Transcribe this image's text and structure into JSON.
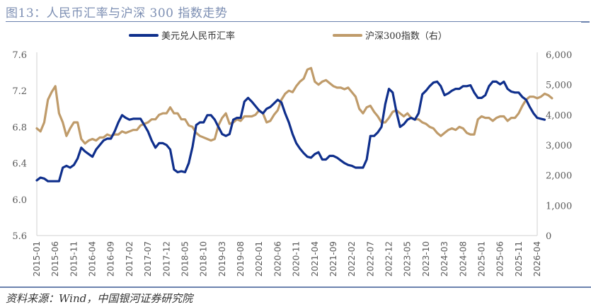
{
  "title": "图13：人民币汇率与沪深 300 指数走势",
  "source": "资料来源：Wind，中国银河证券研究院",
  "chart_data": {
    "type": "line",
    "title": "图13：人民币汇率与沪深 300 指数走势",
    "xlabel": "",
    "ylabel": "",
    "y2label": "",
    "ylim": [
      5.6,
      7.6
    ],
    "y2lim": [
      0,
      6000
    ],
    "yticks": [
      "5.6",
      "6.0",
      "6.4",
      "6.8",
      "7.2",
      "7.6"
    ],
    "y2ticks": [
      "0",
      "1,000",
      "2,000",
      "3,000",
      "4,000",
      "5,000",
      "6,000"
    ],
    "grid": false,
    "legend": "top-center",
    "xticks": [
      "2015-01",
      "2015-06",
      "2015-11",
      "2016-04",
      "2016-09",
      "2017-02",
      "2017-07",
      "2017-12",
      "2018-05",
      "2018-10",
      "2019-03",
      "2019-08",
      "2020-01",
      "2020-06",
      "2020-11",
      "2021-04",
      "2021-09",
      "2022-02",
      "2022-07",
      "2022-12",
      "2023-05",
      "2023-10",
      "2024-03",
      "2024-08",
      "2025-01",
      "2025-06",
      "2025-11",
      "2026-04"
    ],
    "x_start": "2015-01",
    "x_end": "2026-04",
    "series": [
      {
        "name": "美元兑人民币汇率",
        "axis": "left",
        "color": "#0f2f8c",
        "values": [
          6.21,
          6.24,
          6.23,
          6.2,
          6.2,
          6.2,
          6.2,
          6.35,
          6.37,
          6.35,
          6.38,
          6.45,
          6.57,
          6.53,
          6.5,
          6.47,
          6.55,
          6.6,
          6.65,
          6.67,
          6.67,
          6.75,
          6.85,
          6.93,
          6.9,
          6.88,
          6.89,
          6.89,
          6.89,
          6.82,
          6.75,
          6.65,
          6.57,
          6.62,
          6.62,
          6.6,
          6.55,
          6.33,
          6.3,
          6.31,
          6.3,
          6.4,
          6.58,
          6.82,
          6.85,
          6.85,
          6.93,
          6.93,
          6.88,
          6.8,
          6.72,
          6.7,
          6.72,
          6.88,
          6.9,
          6.9,
          7.08,
          7.12,
          7.08,
          7.03,
          6.98,
          6.95,
          7.0,
          7.02,
          7.06,
          7.1,
          7.07,
          6.95,
          6.85,
          6.72,
          6.62,
          6.56,
          6.51,
          6.47,
          6.46,
          6.5,
          6.52,
          6.44,
          6.44,
          6.48,
          6.48,
          6.46,
          6.43,
          6.4,
          6.38,
          6.37,
          6.35,
          6.35,
          6.35,
          6.44,
          6.7,
          6.7,
          6.74,
          6.8,
          7.05,
          7.22,
          7.18,
          6.97,
          6.8,
          6.83,
          6.88,
          6.9,
          6.88,
          6.95,
          7.16,
          7.2,
          7.25,
          7.29,
          7.3,
          7.25,
          7.15,
          7.17,
          7.2,
          7.22,
          7.22,
          7.25,
          7.25,
          7.26,
          7.18,
          7.12,
          7.12,
          7.15,
          7.25,
          7.3,
          7.3,
          7.27,
          7.3,
          7.22,
          7.19,
          7.18,
          7.18,
          7.13,
          7.1,
          7.02,
          6.95,
          6.9,
          6.89,
          6.88
        ]
      },
      {
        "name": "沪深300指数（右）",
        "axis": "right",
        "color": "#bf9b6a",
        "values": [
          3550,
          3450,
          3750,
          4500,
          4750,
          4950,
          4050,
          3750,
          3300,
          3550,
          3750,
          3750,
          3200,
          3050,
          3150,
          3200,
          3150,
          3250,
          3250,
          3350,
          3300,
          3350,
          3350,
          3450,
          3400,
          3450,
          3500,
          3500,
          3650,
          3700,
          3750,
          3850,
          3850,
          4000,
          4050,
          4050,
          4250,
          4050,
          4050,
          3850,
          3850,
          3650,
          3600,
          3400,
          3300,
          3250,
          3200,
          3150,
          3200,
          3650,
          3900,
          4050,
          3700,
          3750,
          3850,
          3800,
          3950,
          3950,
          3950,
          4000,
          4150,
          4050,
          3750,
          3800,
          4000,
          4150,
          4500,
          4700,
          4800,
          4750,
          4950,
          5100,
          5200,
          5500,
          5550,
          5100,
          5000,
          5100,
          5150,
          5050,
          4950,
          4900,
          4900,
          4850,
          4900,
          4750,
          4600,
          4200,
          4050,
          4250,
          4300,
          4100,
          3950,
          3750,
          3750,
          3900,
          4100,
          4150,
          4050,
          3950,
          4050,
          3900,
          3850,
          3850,
          3750,
          3700,
          3600,
          3550,
          3400,
          3300,
          3400,
          3500,
          3550,
          3500,
          3600,
          3550,
          3400,
          3350,
          3350,
          3850,
          3950,
          3900,
          3900,
          3800,
          3900,
          3950,
          3950,
          3800,
          3900,
          3900,
          4050,
          4300,
          4500,
          4600,
          4600,
          4550,
          4600,
          4700,
          4650,
          4550
        ]
      }
    ]
  }
}
